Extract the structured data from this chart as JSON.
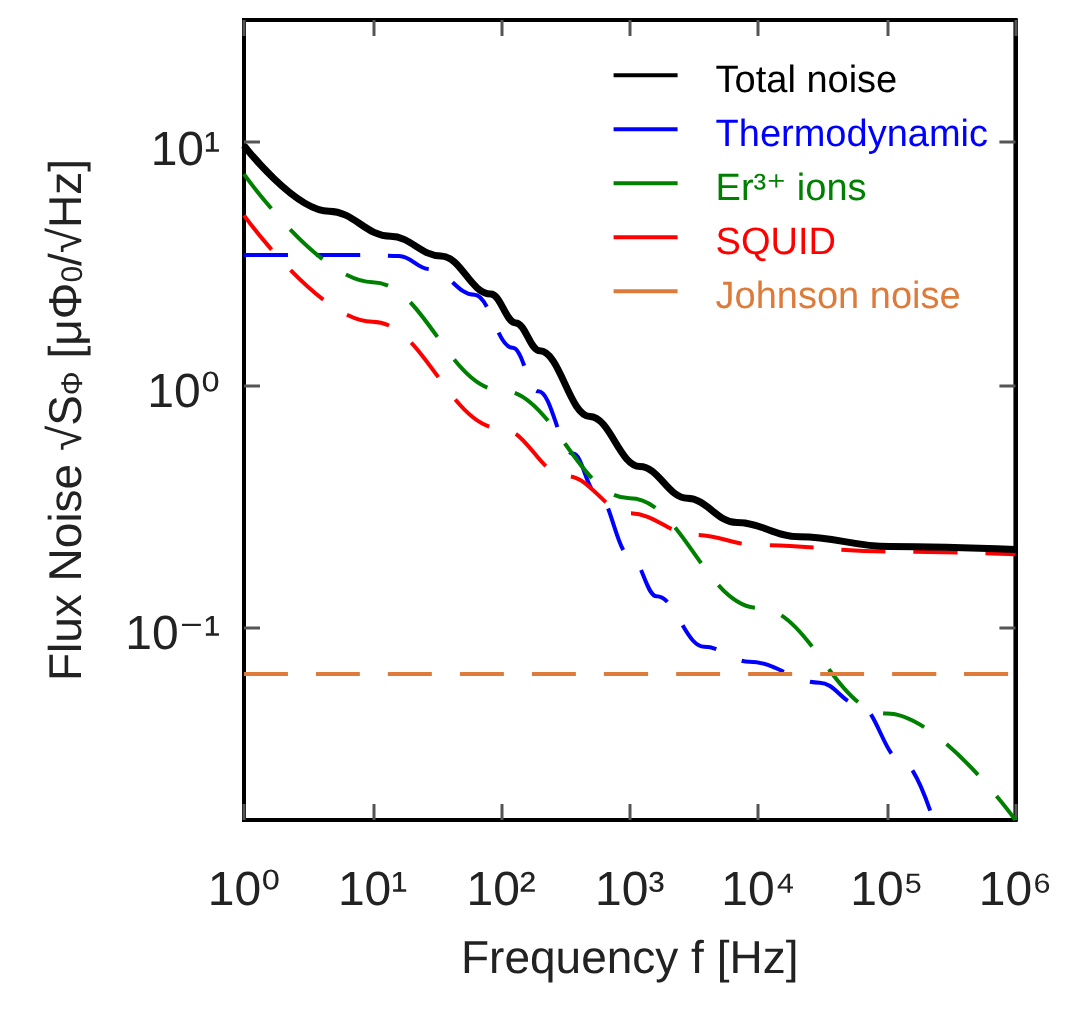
{
  "chart_data": {
    "type": "line",
    "xlabel": "Frequency f [Hz]",
    "ylabel": "Flux Noise √S$_{Φ}$ [μΦ$_{0}$/√Hz]",
    "log": "xy",
    "grid": false,
    "legend": "top right",
    "marker": "none",
    "xlim": [
      1,
      1000000
    ],
    "ylim": [
      0.016,
      32
    ],
    "xticks": [
      {
        "value": 1,
        "label": "10⁰"
      },
      {
        "value": 10,
        "label": "10¹"
      },
      {
        "value": 100,
        "label": "10²"
      },
      {
        "value": 1000,
        "label": "10³"
      },
      {
        "value": 10000,
        "label": "10⁴"
      },
      {
        "value": 100000,
        "label": "10⁵"
      },
      {
        "value": 1000000,
        "label": "10⁶"
      }
    ],
    "yticks": [
      {
        "value": 0.1,
        "label": "10⁻¹"
      },
      {
        "value": 1,
        "label": "10⁰"
      },
      {
        "value": 10,
        "label": "10¹"
      }
    ],
    "series": [
      {
        "name": "Total noise",
        "color": "#000000",
        "line_style": "solid",
        "x": [
          1,
          4.6,
          13.8,
          34,
          83,
          130,
          200,
          490,
          1200,
          2800,
          6800,
          21000,
          105000,
          1000000
        ],
        "values": [
          9.7,
          5.2,
          4.1,
          3.4,
          2.37,
          1.8,
          1.38,
          0.74,
          0.46,
          0.34,
          0.27,
          0.236,
          0.215,
          0.209
        ]
      },
      {
        "name": "Thermodynamic",
        "color": "#0000ff",
        "line_style": "dashed",
        "x": [
          1,
          10,
          16,
          28,
          62,
          123,
          195,
          363,
          550,
          1020,
          1620,
          3800,
          8500,
          30000,
          60000,
          132000,
          230000
        ],
        "values": [
          3.43,
          3.43,
          3.4,
          3.0,
          2.35,
          1.42,
          0.94,
          0.52,
          0.36,
          0.195,
          0.134,
          0.083,
          0.072,
          0.059,
          0.048,
          0.028,
          0.016
        ]
      },
      {
        "name": "Er³⁺ ions",
        "color": "#008000",
        "line_style": "dashed",
        "x": [
          1,
          10,
          100,
          1000,
          10000,
          100000,
          1000000
        ],
        "values": [
          7.4,
          2.65,
          0.95,
          0.34,
          0.12,
          0.044,
          0.016
        ]
      },
      {
        "name": "SQUID",
        "color": "#ff0000",
        "line_style": "dashed",
        "x": [
          1,
          10,
          100,
          320,
          1000,
          3200,
          10000,
          100000,
          1000000
        ],
        "values": [
          5.0,
          1.82,
          0.66,
          0.42,
          0.295,
          0.24,
          0.218,
          0.205,
          0.2
        ]
      },
      {
        "name": "Johnson noise",
        "color": "#dd7b3a",
        "line_style": "dashed",
        "x": [
          1,
          1000000
        ],
        "values": [
          0.064,
          0.064
        ]
      }
    ]
  }
}
